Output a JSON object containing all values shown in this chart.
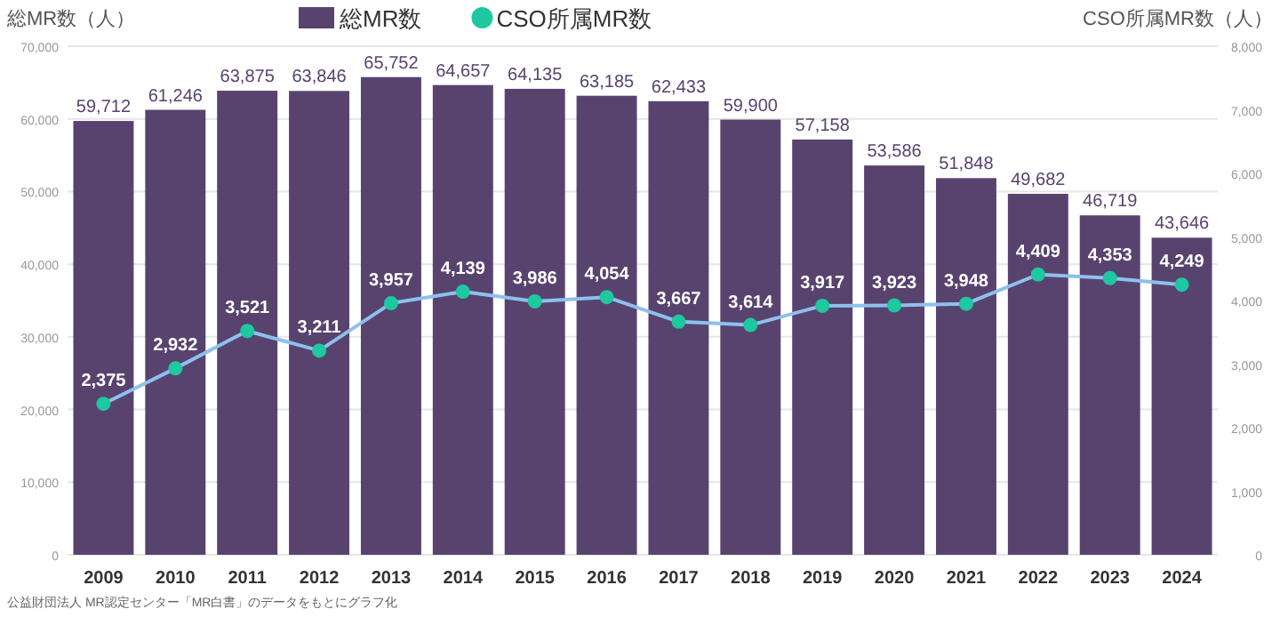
{
  "chart_data": {
    "type": "bar",
    "categories": [
      "2009",
      "2010",
      "2011",
      "2012",
      "2013",
      "2014",
      "2015",
      "2016",
      "2017",
      "2018",
      "2019",
      "2020",
      "2021",
      "2022",
      "2023",
      "2024"
    ],
    "series": [
      {
        "name": "総MR数",
        "color": "#58436f",
        "values": [
          59712,
          61246,
          63875,
          63846,
          65752,
          64657,
          64135,
          63185,
          62433,
          59900,
          57158,
          53586,
          51848,
          49682,
          46719,
          43646
        ],
        "value_labels": [
          "59,712",
          "61,246",
          "63,875",
          "63,846",
          "65,752",
          "64,657",
          "64,135",
          "63,185",
          "62,433",
          "59,900",
          "57,158",
          "53,586",
          "51,848",
          "49,682",
          "46,719",
          "43,646"
        ]
      },
      {
        "name": "CSO所属MR数",
        "type": "line",
        "axis": "y2",
        "color": "#1ec8a0",
        "marker": "circle",
        "values": [
          2375,
          2932,
          3521,
          3211,
          3957,
          4139,
          3986,
          4054,
          3667,
          3614,
          3917,
          3923,
          3948,
          4409,
          4353,
          4249
        ],
        "value_labels": [
          "2,375",
          "2,932",
          "3,521",
          "3,211",
          "3,957",
          "4,139",
          "3,986",
          "4,054",
          "3,667",
          "3,614",
          "3,917",
          "3,923",
          "3,948",
          "4,409",
          "4,353",
          "4,249"
        ]
      }
    ],
    "ylabel": "総MR数（人）",
    "y2label": "CSO所属MR数（人）",
    "ylim": [
      0,
      70000
    ],
    "yticks": [
      0,
      {
        "value": 10000,
        "label": "10,000"
      },
      {
        "value": 20000,
        "label": "20,000"
      },
      {
        "value": 30000,
        "label": "30,000"
      },
      {
        "value": 40000,
        "label": "40,000"
      },
      {
        "value": 50000,
        "label": "50,000"
      },
      {
        "value": 60000,
        "label": "60,000"
      },
      {
        "value": 70000,
        "label": "70,000"
      }
    ],
    "y2lim": [
      0,
      8000
    ],
    "y2ticks": [
      0,
      {
        "value": 1000,
        "label": "1,000"
      },
      {
        "value": 2000,
        "label": "2,000"
      },
      {
        "value": 3000,
        "label": "3,000"
      },
      {
        "value": 4000,
        "label": "4,000"
      },
      {
        "value": 5000,
        "label": "5,000"
      },
      {
        "value": 6000,
        "label": "6,000"
      },
      {
        "value": 7000,
        "label": "7,000"
      },
      {
        "value": 8000,
        "label": "8,000"
      }
    ],
    "grid": "y",
    "legend": "top",
    "annotations": [
      "公益財団法人 MR認定センター「MR白書」のデータをもとにグラフ化"
    ]
  }
}
